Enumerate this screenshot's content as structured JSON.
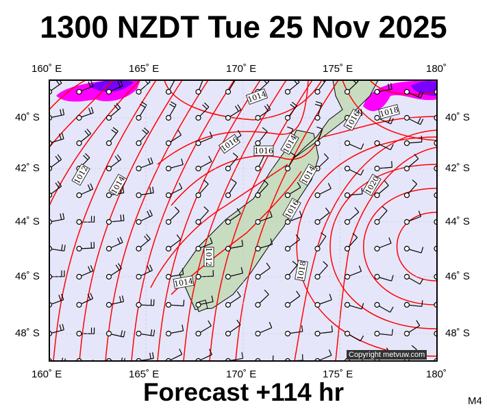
{
  "title": "1300 NZDT Tue 25 Nov 2025",
  "footer": "Forecast +114 hr",
  "model_tag": "M4",
  "copyright": "Copyright metvuw.com",
  "axes": {
    "lon_top": [
      "160˚ E",
      "165˚ E",
      "170˚ E",
      "175˚ E",
      "180˚"
    ],
    "lon_bottom": [
      "160˚ E",
      "165˚ E",
      "170˚ E",
      "175˚ E",
      "180˚"
    ],
    "lat_left": [
      "40˚ S",
      "42˚ S",
      "44˚ S",
      "46˚ S",
      "48˚ S"
    ],
    "lat_right": [
      "40˚ S",
      "42˚ S",
      "44˚ S",
      "46˚ S",
      "48˚ S"
    ]
  },
  "isobar_labels": [
    "1014",
    "1016",
    "1016",
    "1012",
    "1014",
    "1014",
    "1014",
    "1016",
    "1012",
    "1014",
    "1018",
    "1016",
    "1018",
    "1020"
  ],
  "colors": {
    "sea": "#e6e6fa",
    "isobar": "#ff0000",
    "land": "#c8dcc0",
    "rain_heavy": "#7b00ff",
    "rain": "#ff00ff"
  }
}
